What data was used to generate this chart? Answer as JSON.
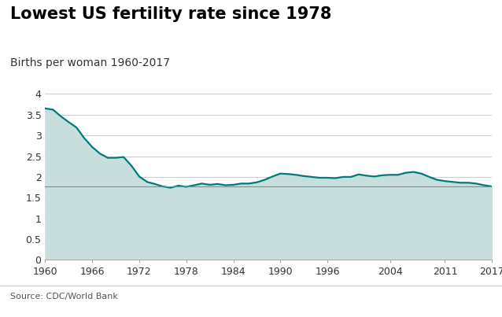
{
  "title": "Lowest US fertility rate since 1978",
  "subtitle": "Births per woman 1960-2017",
  "source": "Source: CDC/World Bank",
  "line_color": "#007A7A",
  "fill_color": "#C8DEDD",
  "reference_line_y": 1.765,
  "reference_line_color": "#888888",
  "background_color": "#ffffff",
  "grid_color": "#cccccc",
  "ylim": [
    0,
    4.2
  ],
  "yticks": [
    0,
    0.5,
    1,
    1.5,
    2,
    2.5,
    3,
    3.5,
    4
  ],
  "xticks": [
    1960,
    1966,
    1972,
    1978,
    1984,
    1990,
    1996,
    2004,
    2011,
    2017
  ],
  "years": [
    1960,
    1961,
    1962,
    1963,
    1964,
    1965,
    1966,
    1967,
    1968,
    1969,
    1970,
    1971,
    1972,
    1973,
    1974,
    1975,
    1976,
    1977,
    1978,
    1979,
    1980,
    1981,
    1982,
    1983,
    1984,
    1985,
    1986,
    1987,
    1988,
    1989,
    1990,
    1991,
    1992,
    1993,
    1994,
    1995,
    1996,
    1997,
    1998,
    1999,
    2000,
    2001,
    2002,
    2003,
    2004,
    2005,
    2006,
    2007,
    2008,
    2009,
    2010,
    2011,
    2012,
    2013,
    2014,
    2015,
    2016,
    2017
  ],
  "fertility": [
    3.65,
    3.62,
    3.46,
    3.32,
    3.19,
    2.93,
    2.72,
    2.56,
    2.46,
    2.46,
    2.48,
    2.27,
    2.01,
    1.88,
    1.83,
    1.77,
    1.74,
    1.79,
    1.76,
    1.8,
    1.84,
    1.81,
    1.83,
    1.8,
    1.81,
    1.84,
    1.84,
    1.87,
    1.93,
    2.01,
    2.08,
    2.07,
    2.05,
    2.02,
    2.0,
    1.98,
    1.98,
    1.97,
    2.0,
    2.0,
    2.06,
    2.03,
    2.01,
    2.04,
    2.05,
    2.05,
    2.1,
    2.12,
    2.08,
    2.0,
    1.93,
    1.9,
    1.88,
    1.86,
    1.86,
    1.84,
    1.8,
    1.77
  ],
  "title_fontsize": 15,
  "subtitle_fontsize": 10,
  "tick_fontsize": 9,
  "source_fontsize": 8
}
